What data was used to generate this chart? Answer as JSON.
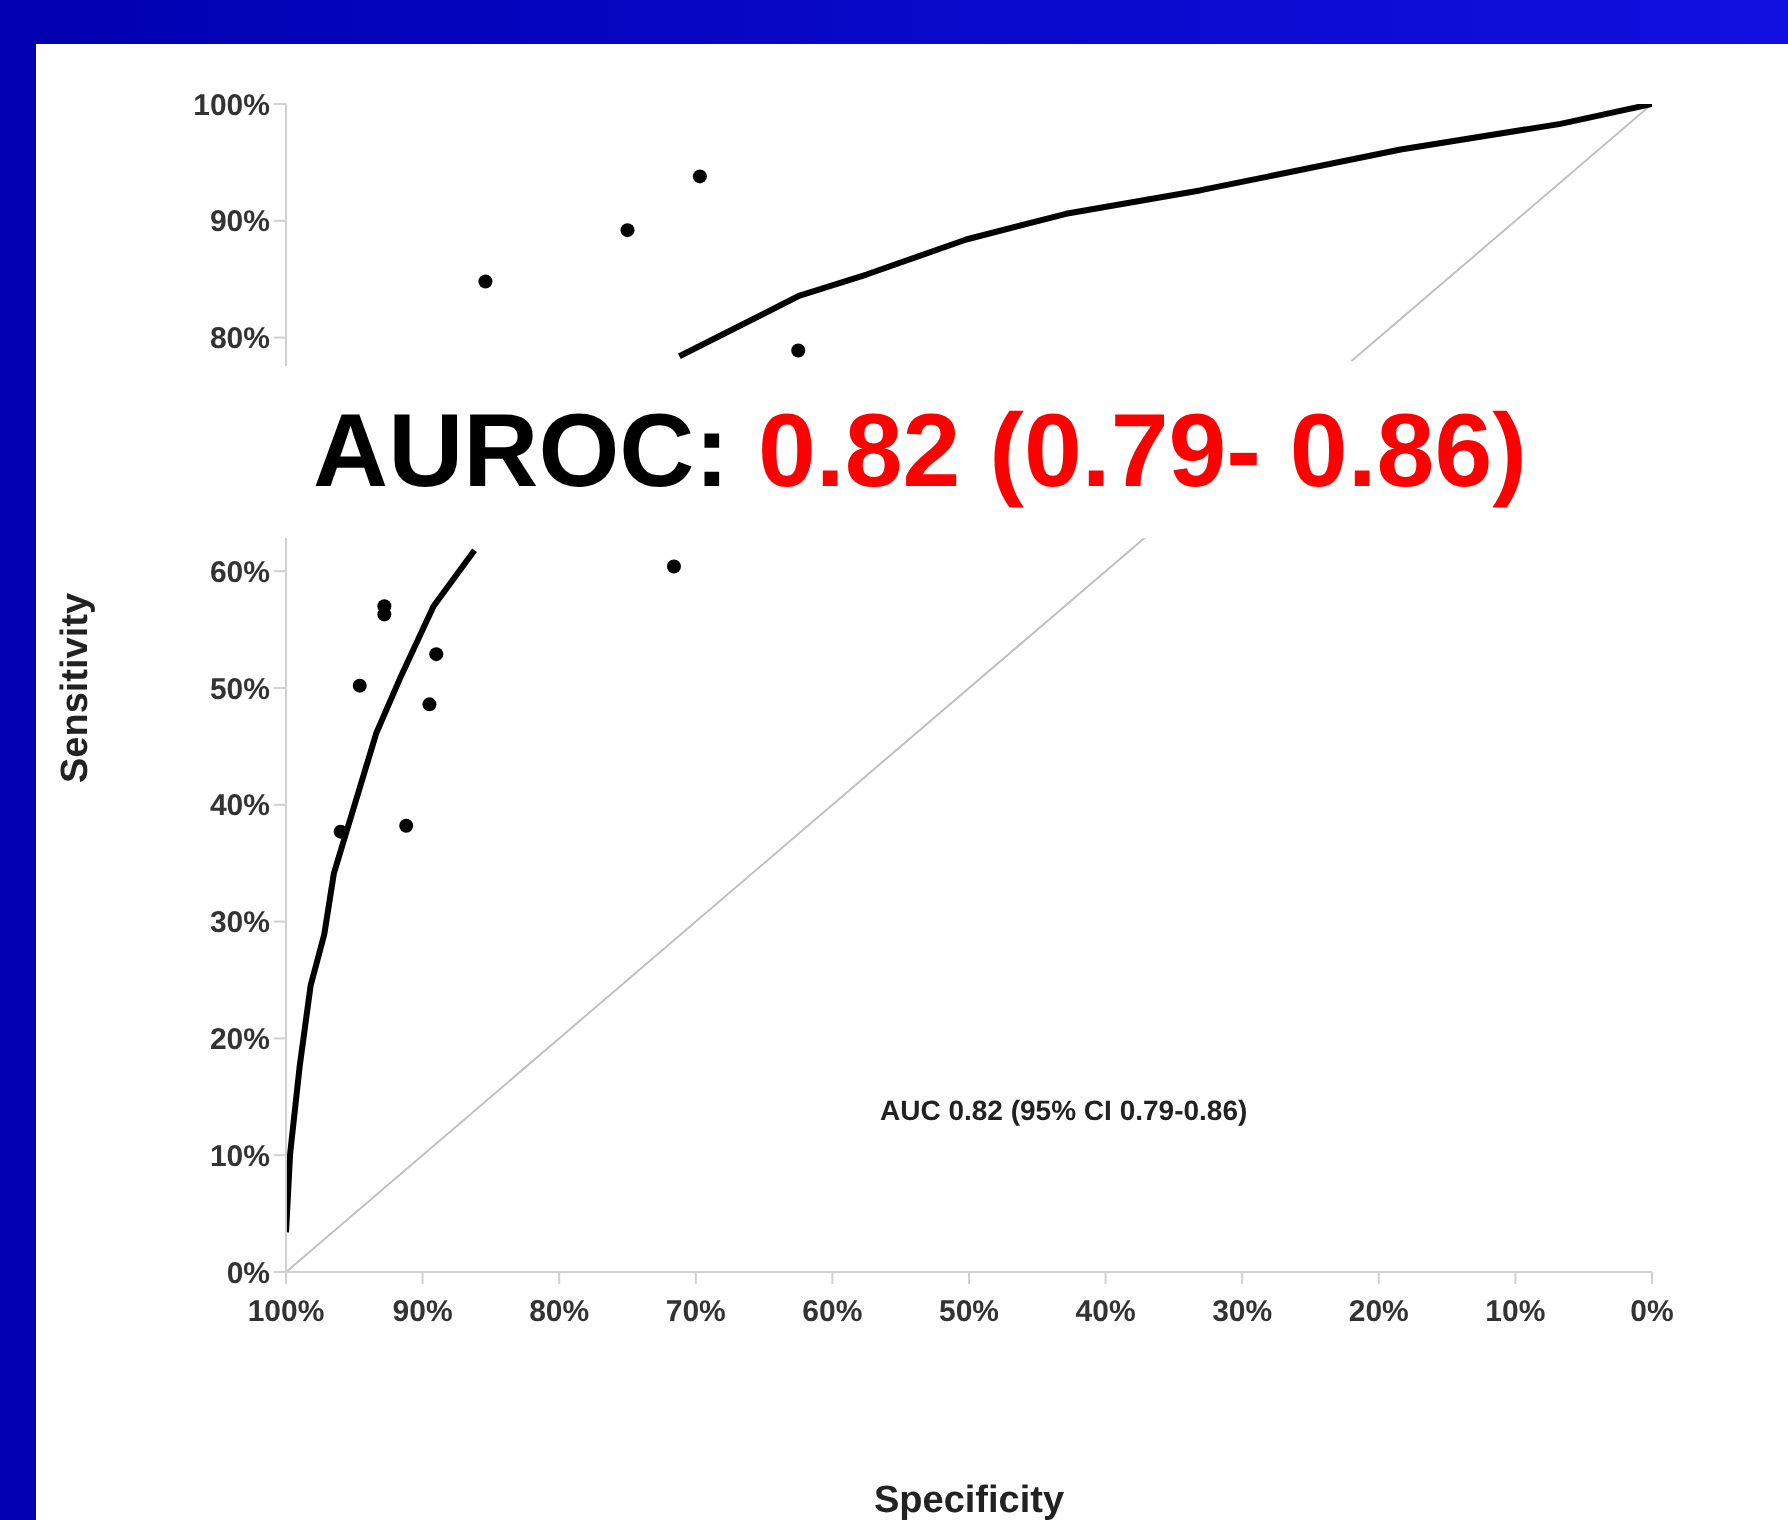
{
  "chart_data": {
    "type": "line",
    "xlabel": "Specificity",
    "ylabel": "Sensitivity",
    "annotations": [
      "AUROC:",
      "0.82 (0.79- 0.86)",
      "AUC 0.82 (95% CI 0.79-0.86)"
    ],
    "xlim": [
      100,
      0
    ],
    "ylim": [
      0,
      100
    ],
    "xticks": [
      {
        "value": 100,
        "label": "100%"
      },
      {
        "value": 90,
        "label": "90%"
      },
      {
        "value": 80,
        "label": "80%"
      },
      {
        "value": 70,
        "label": "70%"
      },
      {
        "value": 60,
        "label": "60%"
      },
      {
        "value": 50,
        "label": "50%"
      },
      {
        "value": 40,
        "label": "40%"
      },
      {
        "value": 30,
        "label": "30%"
      },
      {
        "value": 20,
        "label": "20%"
      },
      {
        "value": 10,
        "label": "10%"
      },
      {
        "value": 0,
        "label": "0%"
      }
    ],
    "yticks": [
      {
        "value": 0,
        "label": "0%"
      },
      {
        "value": 10,
        "label": "10%"
      },
      {
        "value": 20,
        "label": "20%"
      },
      {
        "value": 30,
        "label": "30%"
      },
      {
        "value": 40,
        "label": "40%"
      },
      {
        "value": 50,
        "label": "50%"
      },
      {
        "value": 60,
        "label": "60%"
      },
      {
        "value": 70,
        "label": null
      },
      {
        "value": 80,
        "label": "80%"
      },
      {
        "value": 90,
        "label": "90%"
      },
      {
        "value": 100,
        "label": "100%"
      }
    ],
    "grid": false,
    "legend": false,
    "series": [
      {
        "color": "#c0c0c0",
        "line_style": "solid",
        "x": [
          100,
          37,
          30,
          22,
          0
        ],
        "values": [
          0,
          63,
          null,
          78,
          100
        ]
      },
      {
        "color": "#000000",
        "line_style": "solid",
        "x": [
          100,
          99.7,
          99,
          98.2,
          97.2,
          96.5,
          95,
          93.4,
          91.7,
          89.2,
          86.2,
          79,
          71.2,
          62.4,
          57.5,
          50.2,
          42.9,
          33.1,
          18.4,
          6.7,
          0
        ],
        "values": [
          3.4,
          10.1,
          17.6,
          24.5,
          28.9,
          34.1,
          39.9,
          46.1,
          50.7,
          57,
          61.8,
          null,
          78.4,
          83.6,
          85.4,
          88.4,
          90.6,
          92.6,
          96.1,
          98.3,
          100
        ]
      },
      {
        "type": "scatter",
        "color": "#000000",
        "marker": "circle",
        "x": [
          85.4,
          75,
          69.7,
          62.5,
          71.6,
          92.8,
          92.8,
          89,
          94.6,
          89.5,
          96,
          91.2
        ],
        "values": [
          84.8,
          89.2,
          93.8,
          78.9,
          60.4,
          57,
          56.3,
          52.9,
          50.2,
          48.6,
          37.7,
          38.2
        ]
      }
    ]
  }
}
